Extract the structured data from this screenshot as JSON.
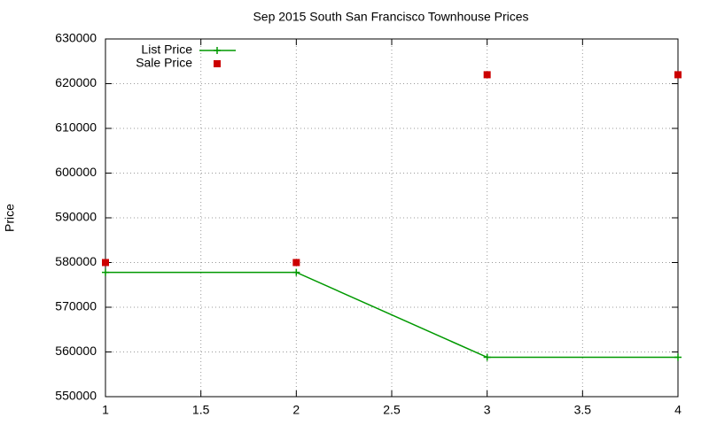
{
  "chart_data": {
    "type": "line",
    "title": "Sep 2015 South San Francisco Townhouse Prices",
    "y_label": "Price",
    "x": [
      1,
      2,
      3,
      4
    ],
    "series": [
      {
        "name": "List Price",
        "color": "#009900",
        "marker": "plus",
        "line": true,
        "values": [
          577800,
          577800,
          558800,
          558800
        ]
      },
      {
        "name": "Sale Price",
        "color": "#cc0000",
        "marker": "square",
        "line": false,
        "values": [
          580000,
          580000,
          622000,
          622000
        ]
      }
    ],
    "xlim": [
      1,
      4
    ],
    "xticks": [
      1,
      1.5,
      2,
      2.5,
      3,
      3.5,
      4
    ],
    "ylim": [
      550000,
      630000
    ],
    "yticks": [
      550000,
      560000,
      570000,
      580000,
      590000,
      600000,
      610000,
      620000,
      630000
    ],
    "grid": true,
    "legend": "top-left"
  }
}
